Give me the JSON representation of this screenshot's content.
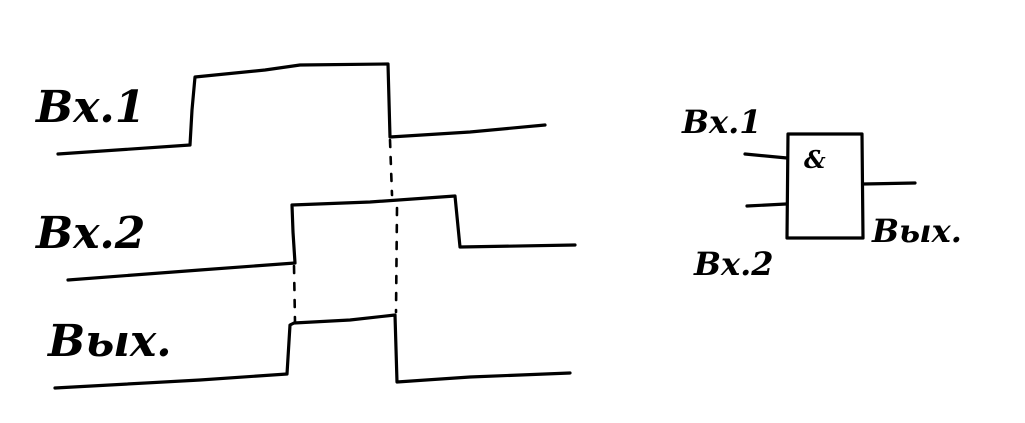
{
  "timing": {
    "input1_label": "Вх.1",
    "input2_label": "Вх.2",
    "output_label": "Вых."
  },
  "gate": {
    "symbol": "&",
    "input1_label": "Вх.1",
    "input2_label": "Вх.2",
    "output_label": "Вых."
  }
}
